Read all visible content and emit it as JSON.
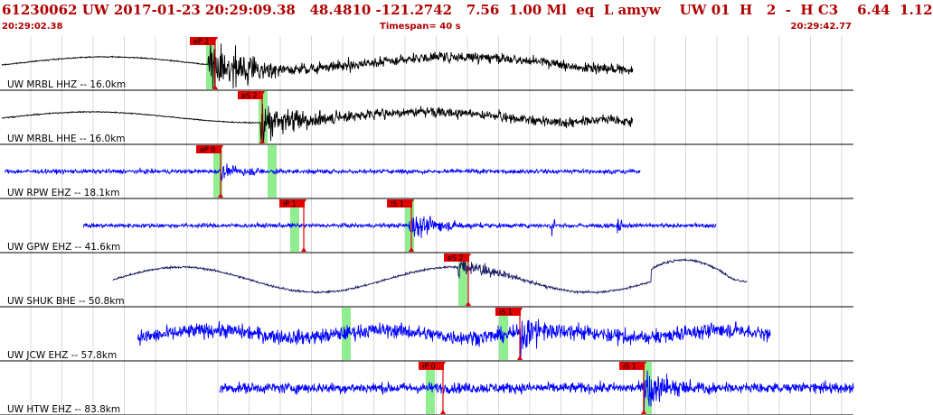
{
  "header": {
    "title": "61230062 UW 2017-01-23 20:29:09.38   48.4810 -121.2742   7.56  1.00 Ml  eq  L amyw    UW 01  H   2  -  H C3    6.44  1.12",
    "time_start": "20:29:02.38",
    "timespan": "Timespan=  40 s",
    "time_end": "20:29:42.77"
  },
  "colors": {
    "header_text": "#b00000",
    "trace_black": "#000000",
    "trace_blue": "#0000ff",
    "trace_navy": "#1a1a66",
    "pick_flag": "#e00000",
    "window": "#90ee90"
  },
  "traces": [
    {
      "label": "UW MRBL HHZ -- 16.0km",
      "color": "black",
      "picks": [
        {
          "text": "eP 2",
          "window": true,
          "side": "left"
        }
      ]
    },
    {
      "label": "UW MRBL HHE -- 16.0km",
      "color": "black",
      "picks": [
        {
          "text": "eS 2",
          "window": true,
          "side": "right"
        }
      ]
    },
    {
      "label": "UW RPW EHZ -- 18.1km",
      "color": "blue",
      "picks": [
        {
          "text": "eP 0",
          "window": true,
          "side": "right"
        }
      ]
    },
    {
      "label": "UW GPW EHZ -- 41.6km",
      "color": "blue",
      "picks": [
        {
          "text": "iP 1",
          "window": true,
          "side": "right"
        },
        {
          "text": "iS 1",
          "window": true,
          "side": "right"
        }
      ]
    },
    {
      "label": "UW SHUK BHE -- 50.8km",
      "color": "navy",
      "picks": [
        {
          "text": "eS 2",
          "window": true,
          "side": "right"
        }
      ]
    },
    {
      "label": "UW JCW EHZ -- 57.8km",
      "color": "blue",
      "picks": [
        {
          "text": "iS 1",
          "window": true,
          "side": "right"
        }
      ]
    },
    {
      "label": "UW HTW EHZ -- 83.8km",
      "color": "blue",
      "picks": [
        {
          "text": "iP 0",
          "window": true,
          "side": "right"
        },
        {
          "text": "iS 1",
          "window": true,
          "side": "right"
        }
      ]
    }
  ]
}
